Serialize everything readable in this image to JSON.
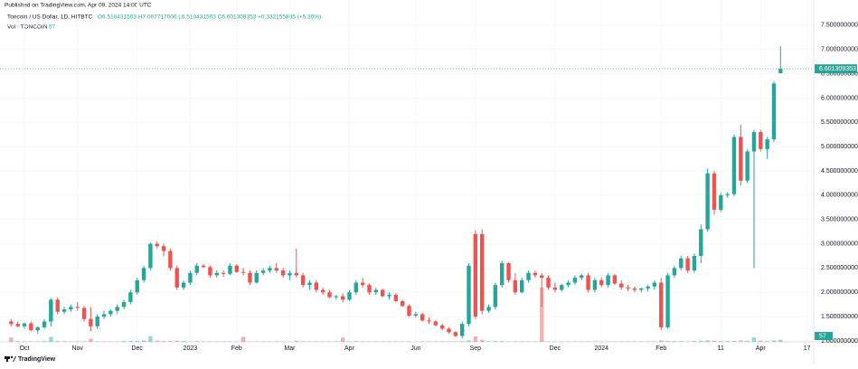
{
  "chart_data": {
    "type": "candlestick",
    "published": "Published on TradingView.com, Apr 09, 2024 14:00 UTC",
    "symbol": "Toncoin / US Dollar, 1D, HITBTC",
    "ohlc": "O6.510431503 H7.067717000 L6.510431503 C6.601309353 +0.332155895 (+5.30%)",
    "volume_name": "Vol · TONCOIN",
    "logo": "TradingView",
    "up_color": "#26a69a",
    "down_color": "#ef5350",
    "ylim": [
      0.98,
      7.74
    ],
    "yticks": [
      {
        "value": 1.0,
        "label": "1.000000000"
      },
      {
        "value": 1.5,
        "label": "1.500000000"
      },
      {
        "value": 2.0,
        "label": "2.000000000"
      },
      {
        "value": 2.5,
        "label": "2.500000000"
      },
      {
        "value": 3.0,
        "label": "3.000000000"
      },
      {
        "value": 3.5,
        "label": "3.500000000"
      },
      {
        "value": 4.0,
        "label": "4.000000000"
      },
      {
        "value": 4.5,
        "label": "4.500000000"
      },
      {
        "value": 5.0,
        "label": "5.000000000"
      },
      {
        "value": 5.5,
        "label": "5.500000000"
      },
      {
        "value": 6.0,
        "label": "6.000000000"
      },
      {
        "value": 6.5,
        "label": "6.500000000"
      },
      {
        "value": 7.0,
        "label": "7.000000000"
      },
      {
        "value": 7.5,
        "label": "7.500000000"
      }
    ],
    "xlim": [
      -1,
      121
    ],
    "xticks": [
      {
        "value": 2,
        "label": "Oct"
      },
      {
        "value": 10,
        "label": "Nov"
      },
      {
        "value": 19,
        "label": "Dec"
      },
      {
        "value": 27,
        "label": "2023"
      },
      {
        "value": 34,
        "label": "Feb"
      },
      {
        "value": 42,
        "label": "Mar"
      },
      {
        "value": 51,
        "label": "Apr"
      },
      {
        "value": 61,
        "label": "Jun"
      },
      {
        "value": 70,
        "label": "Sep"
      },
      {
        "value": 82,
        "label": "Dec"
      },
      {
        "value": 89,
        "label": "2024"
      },
      {
        "value": 98,
        "label": "Feb"
      },
      {
        "value": 107,
        "label": "11"
      },
      {
        "value": 113,
        "label": "Apr"
      },
      {
        "value": 120,
        "label": "17"
      }
    ],
    "candles": [
      [
        1.4,
        1.45,
        1.3,
        1.35
      ],
      [
        1.35,
        1.4,
        1.28,
        1.3
      ],
      [
        1.3,
        1.38,
        1.25,
        1.36
      ],
      [
        1.36,
        1.4,
        1.2,
        1.22
      ],
      [
        1.22,
        1.3,
        1.15,
        1.28
      ],
      [
        1.28,
        1.45,
        1.25,
        1.4
      ],
      [
        1.4,
        1.88,
        1.3,
        1.85
      ],
      [
        1.85,
        1.9,
        1.55,
        1.6
      ],
      [
        1.6,
        1.7,
        1.55,
        1.65
      ],
      [
        1.65,
        1.75,
        1.6,
        1.7
      ],
      [
        1.7,
        1.8,
        1.62,
        1.68
      ],
      [
        1.68,
        1.72,
        1.4,
        1.45
      ],
      [
        1.45,
        1.7,
        1.2,
        1.3
      ],
      [
        1.3,
        1.55,
        1.25,
        1.5
      ],
      [
        1.5,
        1.62,
        1.45,
        1.55
      ],
      [
        1.55,
        1.65,
        1.5,
        1.62
      ],
      [
        1.62,
        1.75,
        1.55,
        1.7
      ],
      [
        1.7,
        1.85,
        1.65,
        1.8
      ],
      [
        1.8,
        2.05,
        1.75,
        2.0
      ],
      [
        2.0,
        2.3,
        1.95,
        2.25
      ],
      [
        2.25,
        2.55,
        2.2,
        2.5
      ],
      [
        2.5,
        3.02,
        2.45,
        3.0
      ],
      [
        3.0,
        3.05,
        2.9,
        2.95
      ],
      [
        2.95,
        3.0,
        2.75,
        2.85
      ],
      [
        2.85,
        2.9,
        2.45,
        2.5
      ],
      [
        2.5,
        2.55,
        2.05,
        2.1
      ],
      [
        2.1,
        2.25,
        2.05,
        2.2
      ],
      [
        2.2,
        2.45,
        2.15,
        2.4
      ],
      [
        2.4,
        2.6,
        2.35,
        2.55
      ],
      [
        2.55,
        2.58,
        2.5,
        2.52
      ],
      [
        2.52,
        2.55,
        2.3,
        2.35
      ],
      [
        2.35,
        2.45,
        2.3,
        2.4
      ],
      [
        2.4,
        2.45,
        2.32,
        2.38
      ],
      [
        2.38,
        2.6,
        2.35,
        2.55
      ],
      [
        2.55,
        2.58,
        2.4,
        2.42
      ],
      [
        2.42,
        2.5,
        2.35,
        2.4
      ],
      [
        2.4,
        2.45,
        2.15,
        2.2
      ],
      [
        2.2,
        2.45,
        2.18,
        2.4
      ],
      [
        2.4,
        2.5,
        2.35,
        2.45
      ],
      [
        2.45,
        2.55,
        2.4,
        2.5
      ],
      [
        2.5,
        2.6,
        2.4,
        2.45
      ],
      [
        2.45,
        2.5,
        2.3,
        2.35
      ],
      [
        2.35,
        2.45,
        2.25,
        2.4
      ],
      [
        2.4,
        2.9,
        2.3,
        2.35
      ],
      [
        2.35,
        2.4,
        2.1,
        2.15
      ],
      [
        2.15,
        2.25,
        2.05,
        2.2
      ],
      [
        2.2,
        2.25,
        2.0,
        2.05
      ],
      [
        2.05,
        2.1,
        1.95,
        2.0
      ],
      [
        2.0,
        2.05,
        1.88,
        1.9
      ],
      [
        1.9,
        1.95,
        1.85,
        1.92
      ],
      [
        1.92,
        1.98,
        1.8,
        1.85
      ],
      [
        1.85,
        2.05,
        1.82,
        2.0
      ],
      [
        2.0,
        2.25,
        1.95,
        2.2
      ],
      [
        2.2,
        2.3,
        2.1,
        2.15
      ],
      [
        2.15,
        2.18,
        1.95,
        2.0
      ],
      [
        2.0,
        2.1,
        1.95,
        2.05
      ],
      [
        2.05,
        2.08,
        1.9,
        1.92
      ],
      [
        1.92,
        2.0,
        1.85,
        1.95
      ],
      [
        1.95,
        1.98,
        1.8,
        1.82
      ],
      [
        1.82,
        1.85,
        1.7,
        1.72
      ],
      [
        1.72,
        1.75,
        1.5,
        1.52
      ],
      [
        1.52,
        1.6,
        1.48,
        1.55
      ],
      [
        1.55,
        1.58,
        1.4,
        1.42
      ],
      [
        1.42,
        1.48,
        1.35,
        1.4
      ],
      [
        1.4,
        1.42,
        1.3,
        1.32
      ],
      [
        1.32,
        1.35,
        1.22,
        1.25
      ],
      [
        1.25,
        1.28,
        1.15,
        1.18
      ],
      [
        1.18,
        1.2,
        1.08,
        1.1
      ],
      [
        1.1,
        1.4,
        1.05,
        1.35
      ],
      [
        1.35,
        2.6,
        1.3,
        2.55
      ],
      [
        3.2,
        3.28,
        1.45,
        1.5
      ],
      [
        3.2,
        3.3,
        1.55,
        1.62
      ],
      [
        1.62,
        1.75,
        1.58,
        1.7
      ],
      [
        1.7,
        2.2,
        1.65,
        2.15
      ],
      [
        2.15,
        2.65,
        2.1,
        2.6
      ],
      [
        2.6,
        2.62,
        2.2,
        2.25
      ],
      [
        2.25,
        2.4,
        1.95,
        2.0
      ],
      [
        2.0,
        2.3,
        1.98,
        2.25
      ],
      [
        2.25,
        2.45,
        2.2,
        2.4
      ],
      [
        2.4,
        2.45,
        2.3,
        2.35
      ],
      [
        2.35,
        2.4,
        1.7,
        2.3
      ],
      [
        2.3,
        2.35,
        2.05,
        2.1
      ],
      [
        2.1,
        2.2,
        2.0,
        2.05
      ],
      [
        2.05,
        2.18,
        2.02,
        2.15
      ],
      [
        2.15,
        2.25,
        2.1,
        2.2
      ],
      [
        2.2,
        2.35,
        2.15,
        2.3
      ],
      [
        2.3,
        2.38,
        2.25,
        2.35
      ],
      [
        2.35,
        2.4,
        2.0,
        2.05
      ],
      [
        2.05,
        2.3,
        2.0,
        2.25
      ],
      [
        2.25,
        2.3,
        2.1,
        2.15
      ],
      [
        2.15,
        2.4,
        2.1,
        2.35
      ],
      [
        2.35,
        2.38,
        2.15,
        2.18
      ],
      [
        2.18,
        2.25,
        2.05,
        2.1
      ],
      [
        2.1,
        2.15,
        2.02,
        2.08
      ],
      [
        2.08,
        2.12,
        2.0,
        2.05
      ],
      [
        2.05,
        2.1,
        2.0,
        2.08
      ],
      [
        2.08,
        2.15,
        2.02,
        2.12
      ],
      [
        2.12,
        2.25,
        2.05,
        2.2
      ],
      [
        2.2,
        2.3,
        1.22,
        1.28
      ],
      [
        1.28,
        2.4,
        1.25,
        2.35
      ],
      [
        2.35,
        2.55,
        2.3,
        2.5
      ],
      [
        2.5,
        2.75,
        2.45,
        2.7
      ],
      [
        2.7,
        2.75,
        2.4,
        2.45
      ],
      [
        2.45,
        2.8,
        2.4,
        2.75
      ],
      [
        2.75,
        3.4,
        2.6,
        3.3
      ],
      [
        3.3,
        4.55,
        3.25,
        4.45
      ],
      [
        4.45,
        4.5,
        3.6,
        3.7
      ],
      [
        3.7,
        4.05,
        3.65,
        4.0
      ],
      [
        4.0,
        4.05,
        3.95,
        4.02
      ],
      [
        4.02,
        5.25,
        3.98,
        5.2
      ],
      [
        5.2,
        5.45,
        4.2,
        4.3
      ],
      [
        4.3,
        4.95,
        4.25,
        4.9
      ],
      [
        4.9,
        5.35,
        2.5,
        5.3
      ],
      [
        5.3,
        5.35,
        4.9,
        4.95
      ],
      [
        4.95,
        5.2,
        4.75,
        5.15
      ],
      [
        5.15,
        6.35,
        5.1,
        6.3
      ],
      [
        6.510431503,
        7.067717,
        6.510431503,
        6.601309353
      ]
    ],
    "volume": [
      120,
      20,
      15,
      10,
      10,
      20,
      140,
      20,
      15,
      10,
      10,
      10,
      90,
      15,
      10,
      10,
      10,
      20,
      20,
      30,
      40,
      160,
      30,
      20,
      20,
      30,
      20,
      10,
      20,
      10,
      10,
      10,
      10,
      10,
      10,
      140,
      10,
      10,
      10,
      10,
      10,
      10,
      10,
      30,
      10,
      10,
      10,
      10,
      10,
      10,
      120,
      10,
      20,
      10,
      10,
      10,
      10,
      10,
      10,
      10,
      10,
      10,
      10,
      10,
      10,
      10,
      10,
      10,
      20,
      40,
      150,
      60,
      20,
      20,
      20,
      10,
      10,
      10,
      10,
      10,
      1500,
      10,
      10,
      10,
      10,
      10,
      10,
      10,
      10,
      10,
      10,
      10,
      10,
      10,
      10,
      10,
      10,
      10,
      40,
      20,
      20,
      20,
      10,
      20,
      30,
      40,
      30,
      20,
      20,
      30,
      40,
      30,
      120,
      30,
      20,
      40,
      57
    ]
  }
}
